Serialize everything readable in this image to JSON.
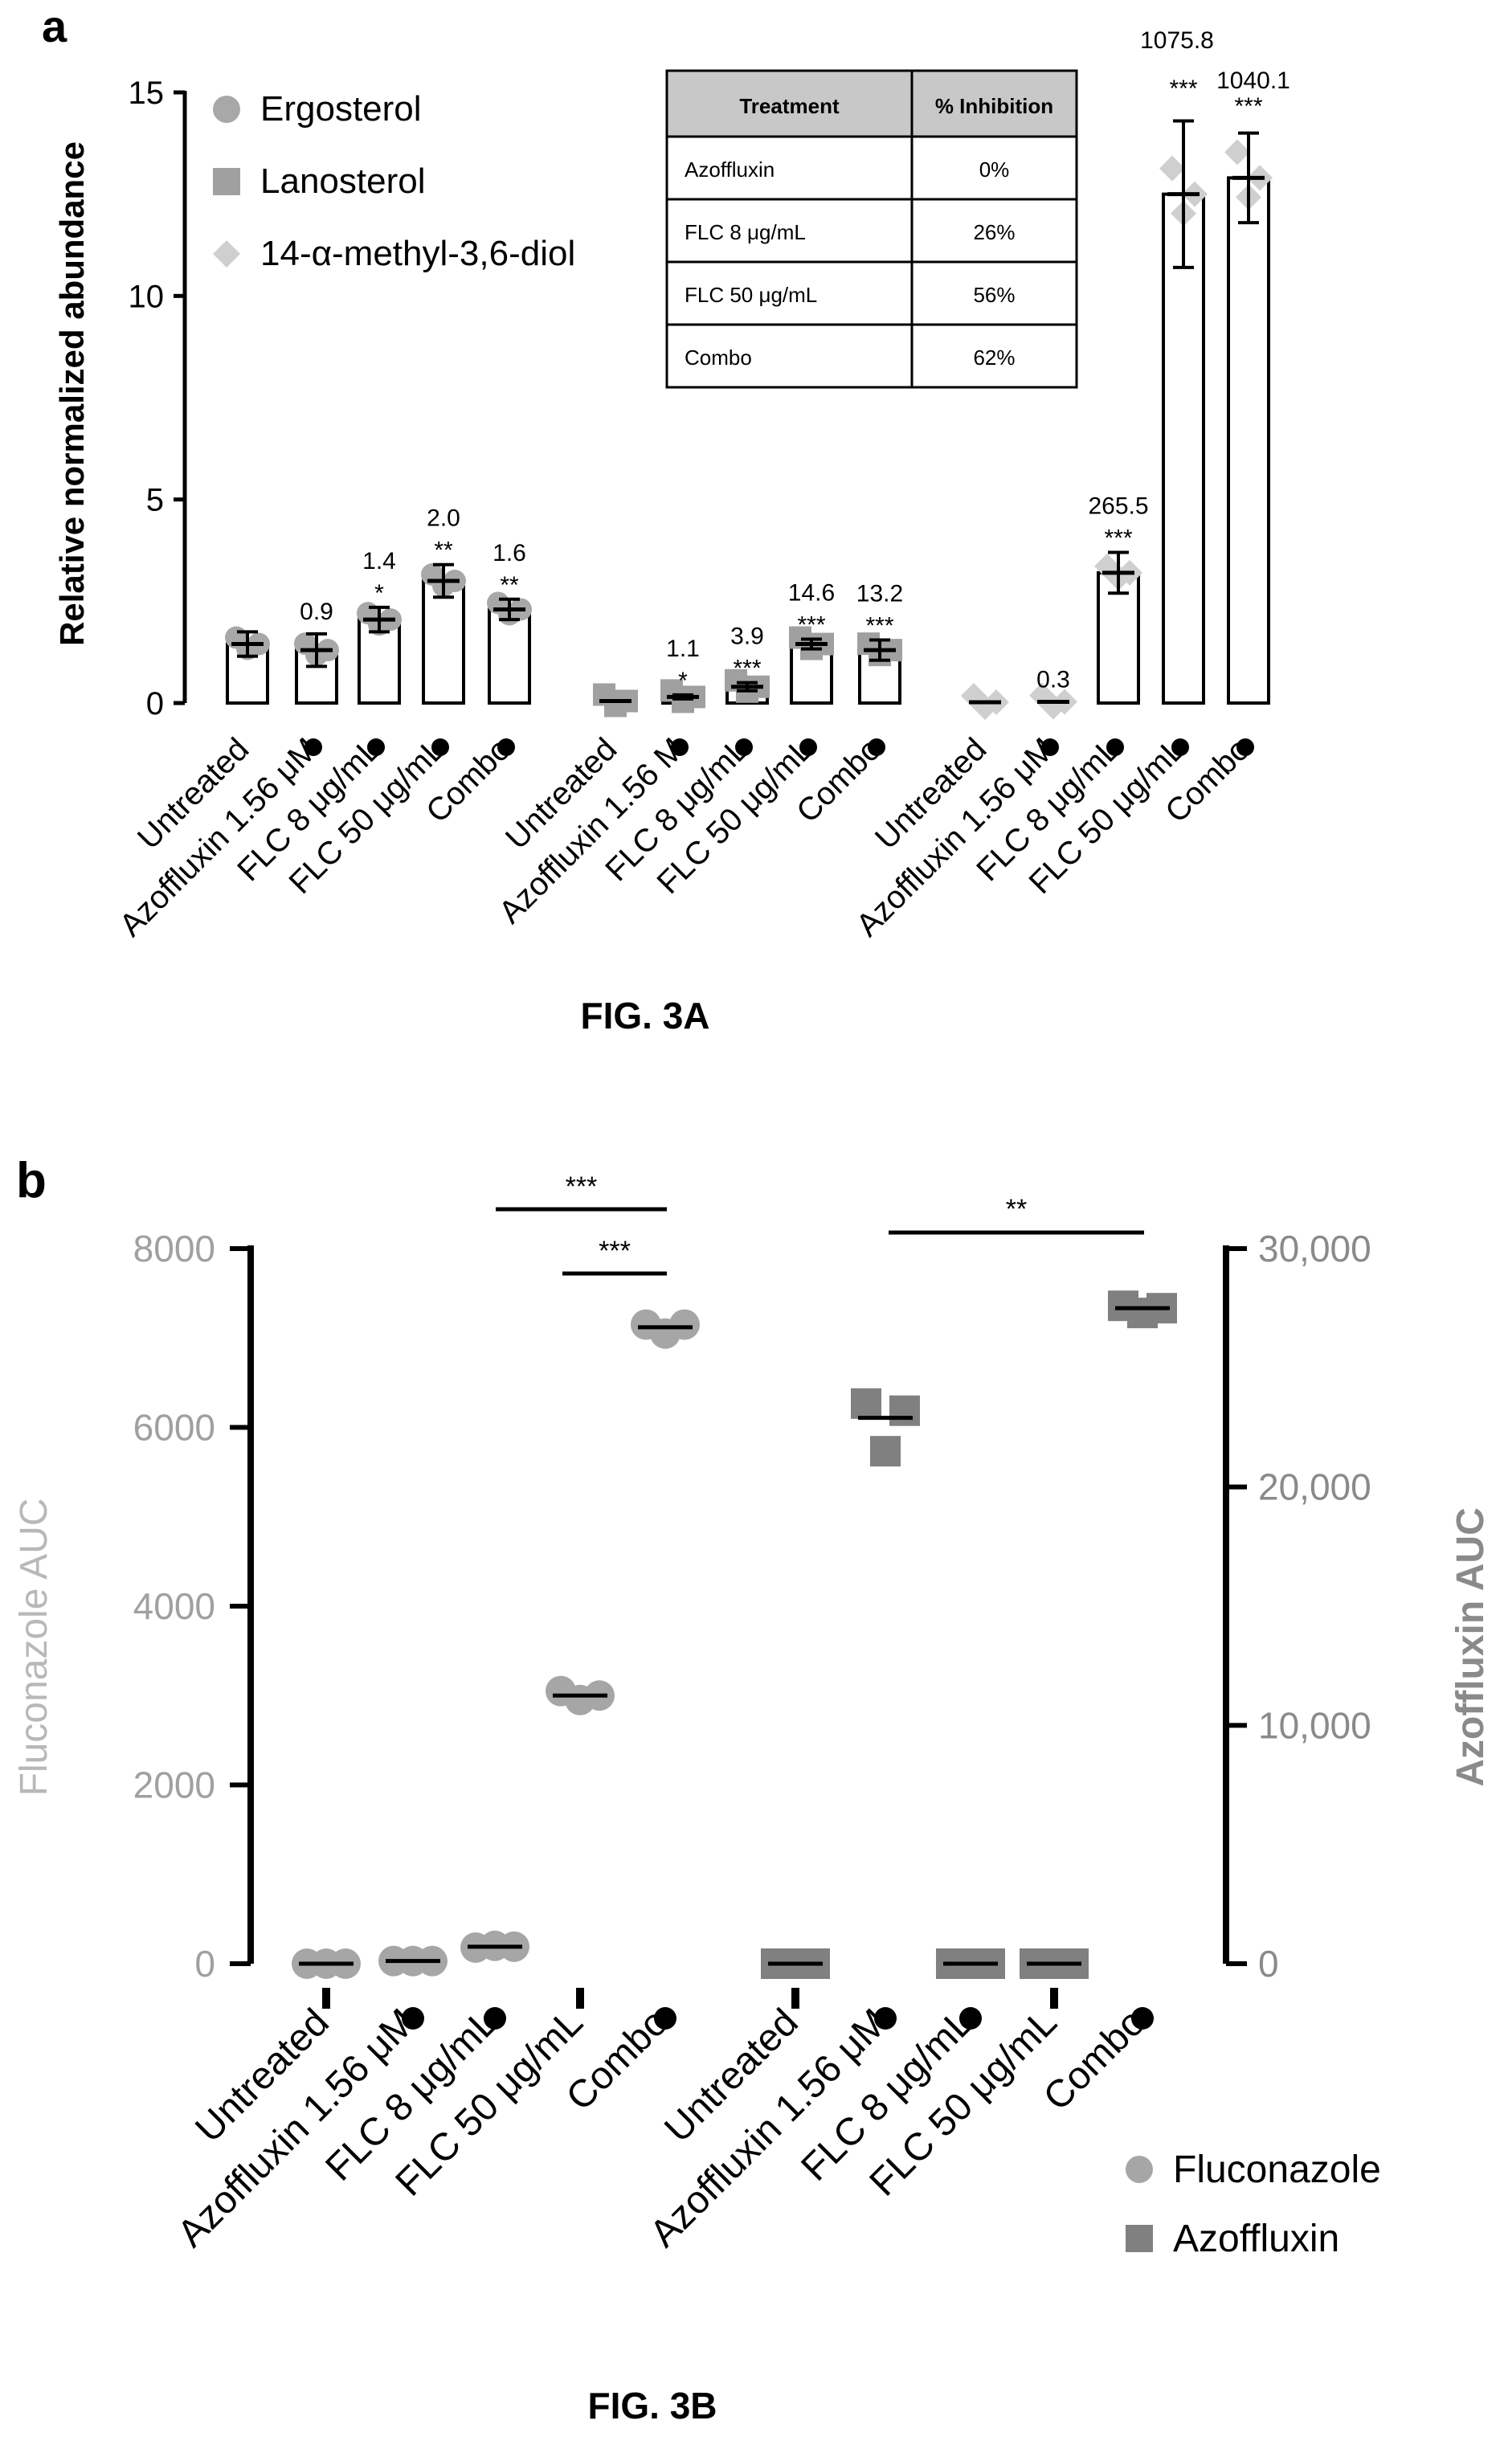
{
  "panel_a": {
    "label": "a",
    "figure_caption": "FIG. 3A",
    "inset_table": {
      "headers": [
        "Treatment",
        "% Inhibition"
      ],
      "rows": [
        [
          "Azoffluxin",
          "0%"
        ],
        [
          "FLC  8 μg/mL",
          "26%"
        ],
        [
          "FLC  50 μg/mL",
          "56%"
        ],
        [
          "Combo",
          "62%"
        ]
      ]
    }
  },
  "panel_b": {
    "label": "b",
    "figure_caption": "FIG. 3B",
    "significance": [
      "***",
      "***",
      "**"
    ]
  },
  "chart_data": [
    {
      "type": "bar",
      "ylabel": "Relative normalized abundance",
      "xlabel": "",
      "ylim": [
        0,
        15
      ],
      "yticks": [
        0,
        5,
        10,
        15
      ],
      "grid": false,
      "legend_position": "top-left",
      "legend": [
        "Ergosterol",
        "Lanosterol",
        "14-α-methyl-3,6-diol"
      ],
      "groups": [
        {
          "series": "Ergosterol",
          "marker": "circle",
          "categories": [
            "Untreated",
            "Azoffluxin 1.56 μM",
            "FLC 8 μg/mL",
            "FLC 50 μg/mL",
            "Combo"
          ],
          "dots": [
            false,
            true,
            true,
            true,
            true
          ],
          "values": [
            1.45,
            1.3,
            2.05,
            3.0,
            2.3
          ],
          "errors": [
            0.3,
            0.4,
            0.3,
            0.4,
            0.25
          ],
          "fold_labels": [
            "",
            "0.9",
            "1.4",
            "2.0",
            "1.6"
          ],
          "stars": [
            "",
            "",
            "*",
            "**",
            "**"
          ]
        },
        {
          "series": "Lanosterol",
          "marker": "square",
          "categories": [
            "Untreated",
            "Azoffluxin 1.56   M",
            "FLC 8 μg/mL",
            "FLC 50 μg/mL",
            "Combo"
          ],
          "dots": [
            false,
            true,
            true,
            true,
            true
          ],
          "values": [
            0.05,
            0.15,
            0.4,
            1.45,
            1.3
          ],
          "errors": [
            0,
            0.05,
            0.1,
            0.12,
            0.25
          ],
          "fold_labels": [
            "",
            "1.1",
            "3.9",
            "14.6",
            "13.2"
          ],
          "stars": [
            "",
            "*",
            "***",
            "***",
            "***"
          ]
        },
        {
          "series": "14-α-methyl-3,6-diol",
          "marker": "diamond",
          "categories": [
            "Untreated",
            "Azoffluxin 1.56 μM",
            "FLC 8 μg/mL",
            "FLC 50 μg/mL",
            "Combo"
          ],
          "dots": [
            false,
            true,
            true,
            true,
            true
          ],
          "values": [
            0.02,
            0.03,
            3.2,
            12.5,
            12.9
          ],
          "errors": [
            0,
            0,
            0.5,
            1.8,
            1.1
          ],
          "fold_labels": [
            "",
            "0.3",
            "265.5",
            "1075.8",
            "1040.1"
          ],
          "stars": [
            "",
            "",
            "***",
            "***",
            "***"
          ]
        }
      ]
    },
    {
      "type": "scatter",
      "ylabel": "Fluconazole AUC",
      "y2label": "Azoffluxin AUC",
      "ylim": [
        0,
        8000
      ],
      "yticks": [
        "0",
        "2000",
        "4000",
        "6000",
        "8000"
      ],
      "y2lim": [
        0,
        30000
      ],
      "y2ticks": [
        "0",
        "10,000",
        "20,000",
        "30,000"
      ],
      "grid": false,
      "legend_position": "bottom-right",
      "legend": [
        "Fluconazole",
        "Azoffluxin"
      ],
      "groups": [
        {
          "series": "Fluconazole",
          "axis": "left",
          "marker": "circle",
          "categories": [
            "Untreated",
            "Azoffluxin 1.56 μM",
            "FLC 8 μg/mL",
            "FLC 50 μg/mL",
            "Combo"
          ],
          "dots": [
            false,
            true,
            true,
            false,
            true
          ],
          "points": [
            [
              0,
              0,
              0
            ],
            [
              30,
              30,
              30
            ],
            [
              180,
              200,
              190
            ],
            [
              3050,
              2950,
              3000
            ],
            [
              7150,
              7050,
              7150
            ]
          ],
          "means": [
            0,
            30,
            190,
            3000,
            7120
          ]
        },
        {
          "series": "Azoffluxin",
          "axis": "right",
          "marker": "square",
          "categories": [
            "Untreated",
            "Azoffluxin 1.56 μM",
            "FLC 8 μg/mL",
            "FLC 50 μg/mL",
            "Combo"
          ],
          "dots": [
            false,
            true,
            true,
            false,
            true
          ],
          "points": [
            [
              0,
              0,
              0
            ],
            [
              23500,
              21500,
              23200
            ],
            [
              0,
              0,
              0
            ],
            [
              0,
              0,
              0
            ],
            [
              27600,
              27300,
              27500
            ]
          ],
          "means": [
            0,
            22900,
            0,
            0,
            27500
          ]
        }
      ]
    }
  ]
}
